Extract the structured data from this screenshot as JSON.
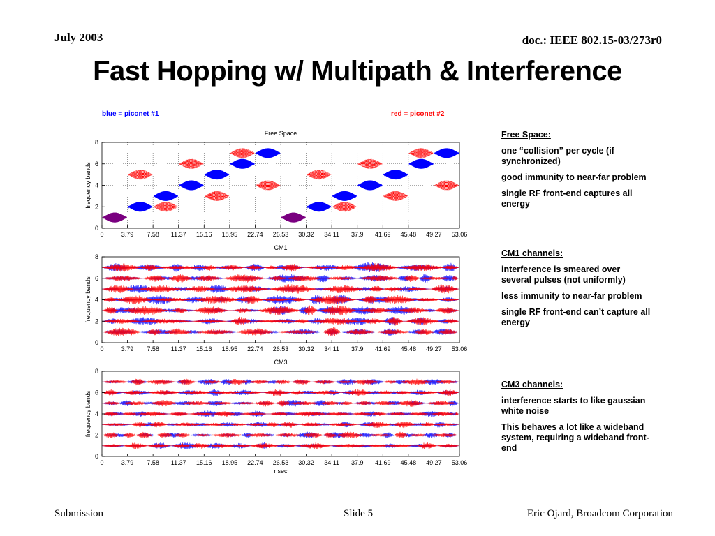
{
  "header": {
    "date": "July 2003",
    "doc": "doc.: IEEE 802.15-03/273r0"
  },
  "title": "Fast Hopping w/ Multipath & Interference",
  "legend": {
    "blue": "blue = piconet #1",
    "red": "red = piconet #2"
  },
  "colors": {
    "blue": "#0000ff",
    "red": "#ff0000",
    "overlap": "#7a0080"
  },
  "notes": [
    {
      "heading": "Free Space:",
      "points": [
        "one “collision” per cycle (if synchronized)",
        "good immunity to near-far problem",
        "single RF front-end captures all energy"
      ]
    },
    {
      "heading": "CM1 channels:",
      "points": [
        "interference is smeared over several pulses (not uniformly)",
        "less immunity to near-far problem",
        "single RF front-end can’t capture all energy"
      ]
    },
    {
      "heading": "CM3 channels:",
      "points": [
        "interference starts to like gaussian white noise",
        "This behaves a lot like a wideband system, requiring a wideband front-end"
      ]
    }
  ],
  "chart_data": [
    {
      "type": "line",
      "title": "Free Space",
      "ylabel": "frequency bands",
      "xlabel": "",
      "ylim": [
        0,
        8
      ],
      "xlim": [
        0,
        53.06
      ],
      "yticks": [
        "0",
        "2",
        "4",
        "6",
        "8"
      ],
      "xticks": [
        "0",
        "3.79",
        "7.58",
        "11.37",
        "15.16",
        "18.95",
        "22.74",
        "26.53",
        "30.32",
        "34.11",
        "37.9",
        "41.69",
        "45.48",
        "49.27",
        "53.06"
      ],
      "grid": true,
      "series": [
        {
          "color": "blue",
          "bands": [
            1,
            2,
            3,
            4,
            5,
            6,
            7,
            1,
            2,
            3,
            4,
            5,
            6,
            7
          ]
        },
        {
          "color": "red",
          "bands": [
            1,
            5,
            2,
            6,
            3,
            7,
            4,
            1,
            5,
            2,
            6,
            3,
            7,
            4
          ]
        }
      ]
    },
    {
      "type": "line",
      "title": "CM1",
      "ylabel": "frequency bands",
      "xlabel": "",
      "ylim": [
        0,
        8
      ],
      "xlim": [
        0,
        53.06
      ],
      "yticks": [
        "0",
        "2",
        "4",
        "6",
        "8"
      ],
      "xticks": [
        "0",
        "3.79",
        "7.58",
        "11.37",
        "15.16",
        "18.95",
        "22.74",
        "26.53",
        "30.32",
        "34.11",
        "37.9",
        "41.69",
        "45.48",
        "49.27",
        "53.06"
      ],
      "grid": false,
      "bands": [
        1,
        2,
        3,
        4,
        5,
        6,
        7
      ]
    },
    {
      "type": "line",
      "title": "CM3",
      "ylabel": "frequency bands",
      "xlabel": "nsec",
      "ylim": [
        0,
        8
      ],
      "xlim": [
        0,
        53.06
      ],
      "yticks": [
        "0",
        "2",
        "4",
        "6",
        "8"
      ],
      "xticks": [
        "0",
        "3.79",
        "7.58",
        "11.37",
        "15.16",
        "18.95",
        "22.74",
        "26.53",
        "30.32",
        "34.11",
        "37.9",
        "41.69",
        "45.48",
        "49.27",
        "53.06"
      ],
      "grid": false,
      "bands": [
        1,
        2,
        3,
        4,
        5,
        6,
        7
      ]
    }
  ],
  "footer": {
    "left": "Submission",
    "center": "Slide 5",
    "right": "Eric Ojard, Broadcom Corporation"
  }
}
